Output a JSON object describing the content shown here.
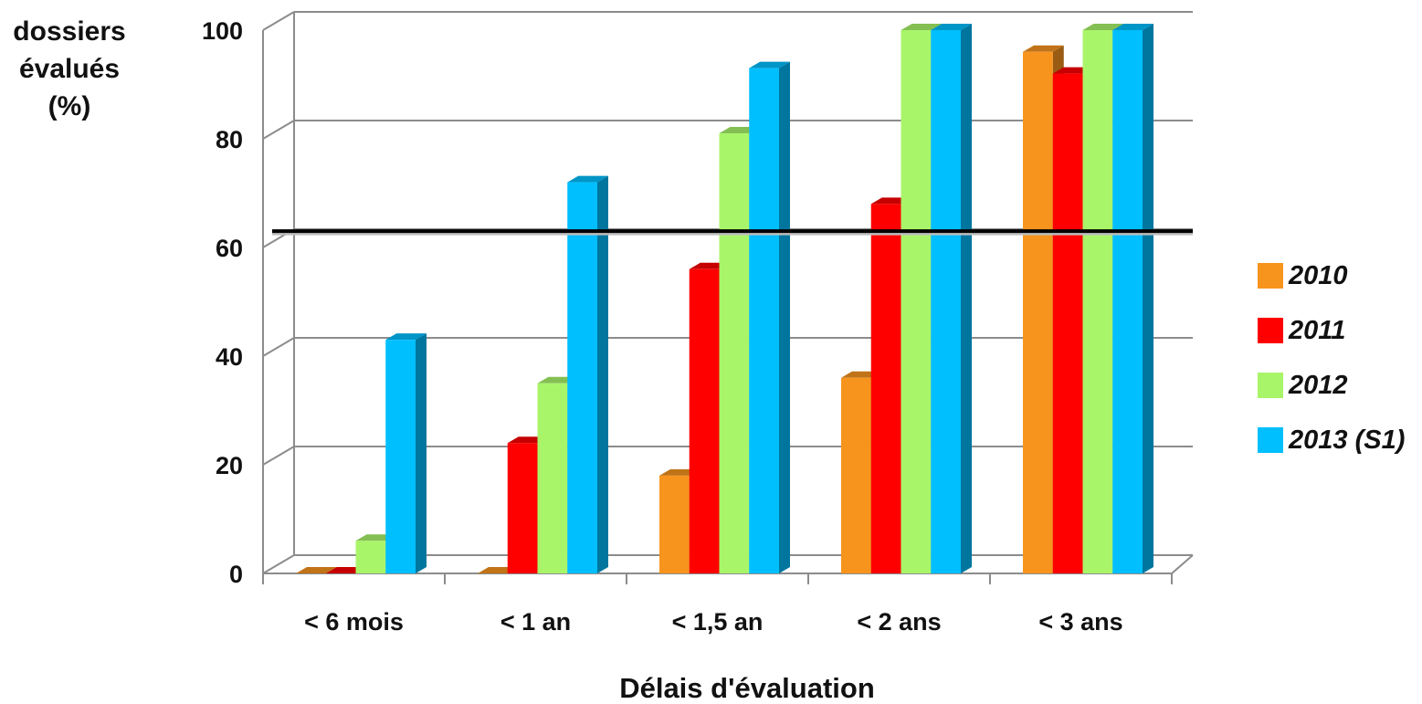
{
  "chart_data": {
    "type": "bar",
    "title": "",
    "ylabel": [
      "dossiers",
      "évalués",
      "(%)"
    ],
    "xlabel": "Délais d'évaluation",
    "categories": [
      "< 6 mois",
      "< 1 an",
      "< 1,5 an",
      "< 2 ans",
      "< 3 ans"
    ],
    "ylim": [
      0,
      100
    ],
    "yticks": [
      "0",
      "20",
      "40",
      "60",
      "80",
      "100"
    ],
    "grid": true,
    "legend_position": "right",
    "reference_line": 63,
    "series": [
      {
        "name": "2010",
        "color": "#f7941d",
        "values": [
          0,
          0,
          18,
          36,
          96
        ]
      },
      {
        "name": "2011",
        "color": "#fe0000",
        "values": [
          0,
          24,
          56,
          68,
          92
        ]
      },
      {
        "name": "2012",
        "color": "#a9f56a",
        "values": [
          6,
          35,
          81,
          100,
          100
        ]
      },
      {
        "name": "2013 (S1)",
        "color": "#00bfff",
        "values": [
          43,
          72,
          93,
          100,
          100
        ]
      }
    ]
  }
}
